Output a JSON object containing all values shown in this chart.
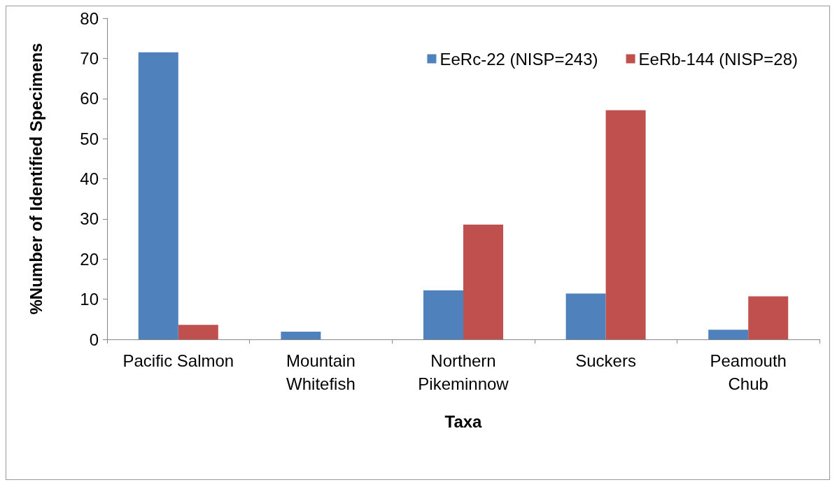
{
  "chart_data": {
    "type": "bar",
    "xlabel": "Taxa",
    "ylabel": "%Number of Identified Specimens",
    "categories": [
      "Pacific Salmon",
      "Mountain\nWhitefish",
      "Northern\nPikeminnow",
      "Suckers",
      "Peamouth\nChub"
    ],
    "series": [
      {
        "name": "EeRc-22 (NISP=243)",
        "color": "#4f81bd",
        "values": [
          71.5,
          1.9,
          12.2,
          11.4,
          2.4
        ]
      },
      {
        "name": "EeRb-144 (NISP=28)",
        "color": "#c0504d",
        "values": [
          3.6,
          0,
          28.6,
          57.1,
          10.7
        ]
      }
    ],
    "ylim": [
      0,
      80
    ],
    "yticks": [
      0,
      10,
      20,
      30,
      40,
      50,
      60,
      70,
      80
    ],
    "grid": false,
    "legend": "top right"
  }
}
